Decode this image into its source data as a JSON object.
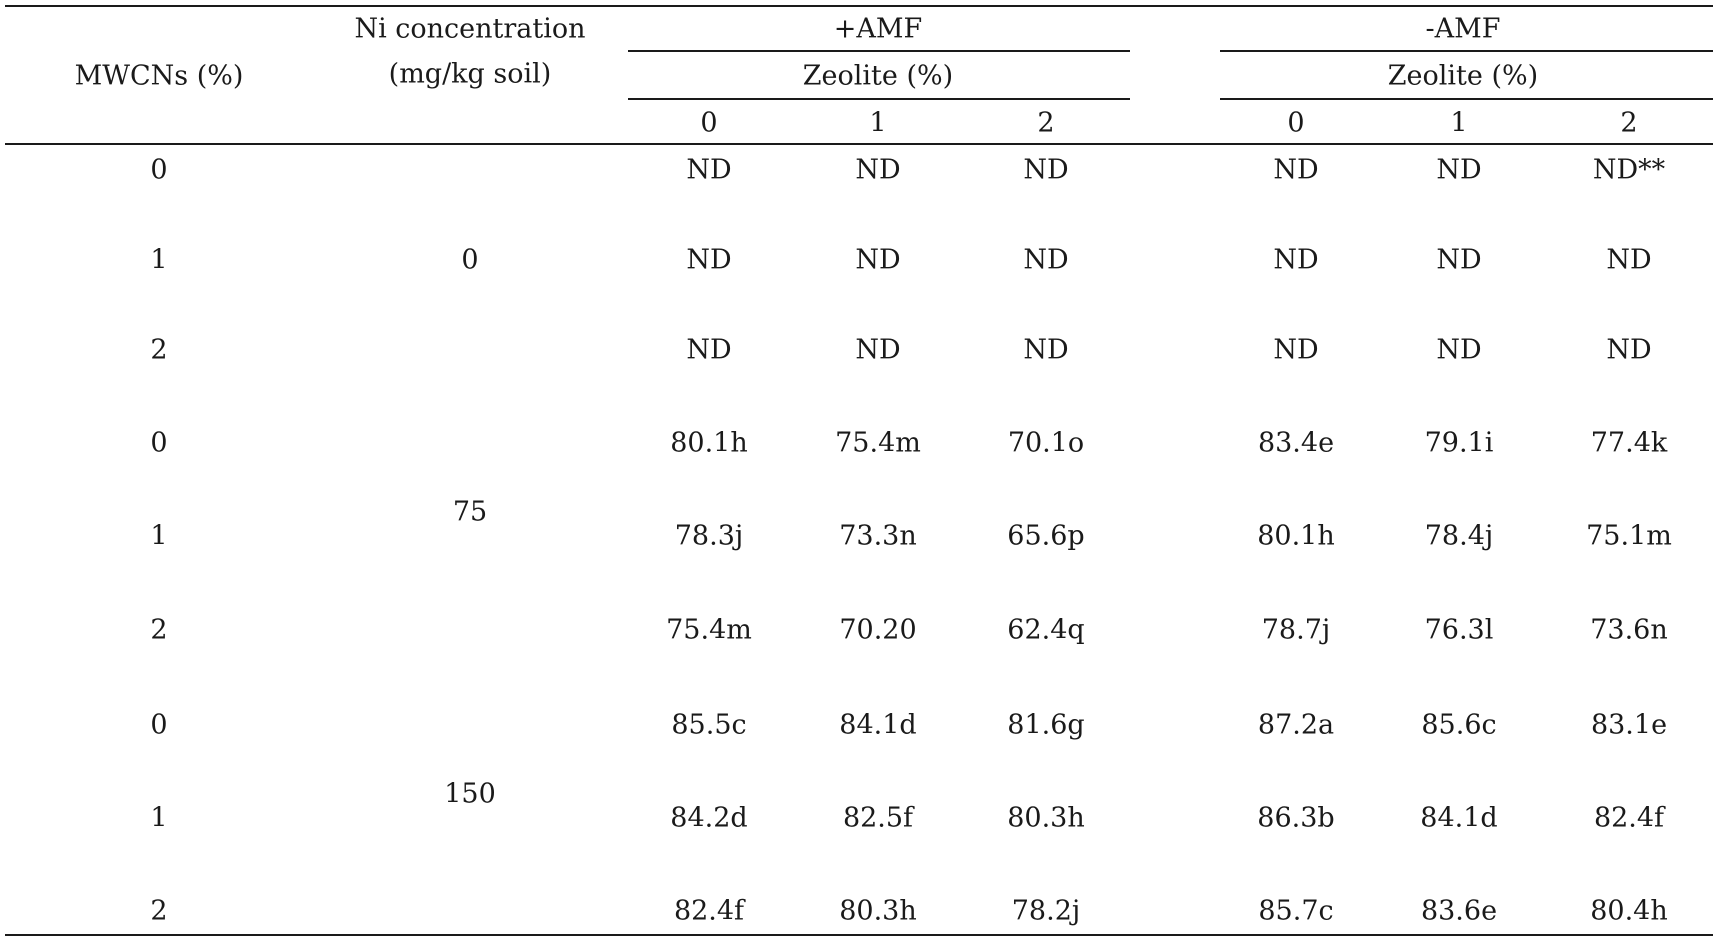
{
  "table": {
    "headers": {
      "mwcns": "MWCNs (%)",
      "ni_line1": "Ni concentration",
      "ni_line2": "(mg/kg soil)",
      "amf_plus": "+AMF",
      "amf_minus": "-AMF",
      "zeolite_plus": "Zeolite (%)",
      "zeolite_minus": "Zeolite (%)",
      "zeolite_levels_plus": [
        "0",
        "1",
        "2"
      ],
      "zeolite_levels_minus": [
        "0",
        "1",
        "2"
      ]
    },
    "ni_groups": [
      "0",
      "75",
      "150"
    ],
    "rows": [
      {
        "mwcns": "0",
        "values": [
          "ND",
          "ND",
          "ND",
          "ND",
          "ND",
          "ND**"
        ]
      },
      {
        "mwcns": "1",
        "values": [
          "ND",
          "ND",
          "ND",
          "ND",
          "ND",
          "ND"
        ]
      },
      {
        "mwcns": "2",
        "values": [
          "ND",
          "ND",
          "ND",
          "ND",
          "ND",
          "ND"
        ]
      },
      {
        "mwcns": "0",
        "values": [
          "80.1h",
          "75.4m",
          "70.1o",
          "83.4e",
          "79.1i",
          "77.4k"
        ]
      },
      {
        "mwcns": "1",
        "values": [
          "78.3j",
          "73.3n",
          "65.6p",
          "80.1h",
          "78.4j",
          "75.1m"
        ]
      },
      {
        "mwcns": "2",
        "values": [
          "75.4m",
          "70.20",
          "62.4q",
          "78.7j",
          "76.3l",
          "73.6n"
        ]
      },
      {
        "mwcns": "0",
        "values": [
          "85.5c",
          "84.1d",
          "81.6g",
          "87.2a",
          "85.6c",
          "83.1e"
        ]
      },
      {
        "mwcns": "1",
        "values": [
          "84.2d",
          "82.5f",
          "80.3h",
          "86.3b",
          "84.1d",
          "82.4f"
        ]
      },
      {
        "mwcns": "2",
        "values": [
          "82.4f",
          "80.3h",
          "78.2j",
          "85.7c",
          "83.6e",
          "80.4h"
        ]
      }
    ]
  }
}
